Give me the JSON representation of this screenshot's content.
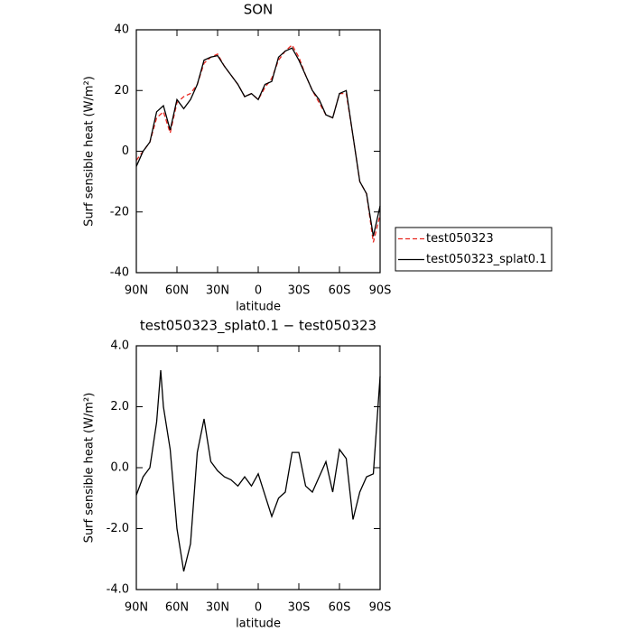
{
  "chart_data": [
    {
      "type": "line",
      "title": "SON",
      "x_label": "latitude",
      "y_label": "Surf sensible heat (W/m²)",
      "x": [
        90,
        85,
        80,
        75,
        70,
        65,
        60,
        55,
        50,
        45,
        40,
        35,
        30,
        25,
        20,
        15,
        10,
        5,
        0,
        -5,
        -10,
        -15,
        -20,
        -25,
        -30,
        -35,
        -40,
        -45,
        -50,
        -55,
        -60,
        -65,
        -70,
        -75,
        -80,
        -85,
        -90
      ],
      "xlim": [
        90,
        -90
      ],
      "xticks": [
        {
          "value": 90,
          "label": "90N"
        },
        {
          "value": 60,
          "label": "60N"
        },
        {
          "value": 30,
          "label": "30N"
        },
        0,
        {
          "value": -30,
          "label": "30S"
        },
        {
          "value": -60,
          "label": "60S"
        },
        {
          "value": -90,
          "label": "90S"
        }
      ],
      "ylim": [
        -40,
        40
      ],
      "yticks": [
        -40,
        -20,
        0,
        20,
        40
      ],
      "legend": "right",
      "series": [
        {
          "name": "test050323",
          "color": "#e8261f",
          "style": "dashed",
          "values": [
            -3,
            0,
            3,
            11,
            13,
            6,
            16,
            18,
            19,
            22,
            29,
            31,
            32,
            28,
            25,
            22,
            18,
            19,
            17,
            21,
            24,
            30,
            33,
            35,
            31,
            25,
            20,
            16,
            12,
            11,
            19,
            19,
            5,
            -10,
            -14,
            -30,
            -21
          ]
        },
        {
          "name": "test050323_splat0.1",
          "color": "#000000",
          "style": "solid",
          "values": [
            -5,
            0,
            3,
            13,
            15,
            7,
            17,
            14,
            17,
            22,
            30,
            31,
            31.5,
            28,
            25,
            22,
            18,
            19,
            17,
            22,
            23,
            31,
            33,
            34,
            30,
            25,
            20,
            17,
            12,
            11,
            19,
            20,
            5,
            -10,
            -14,
            -28,
            -18
          ]
        }
      ]
    },
    {
      "type": "line",
      "title": "test050323_splat0.1 − test050323",
      "x_label": "latitude",
      "y_label": "Surf sensible heat (W/m²)",
      "x": [
        90,
        85,
        80,
        75,
        72,
        70,
        65,
        60,
        55,
        50,
        45,
        40,
        35,
        30,
        25,
        20,
        15,
        10,
        5,
        0,
        -5,
        -10,
        -15,
        -20,
        -25,
        -30,
        -35,
        -40,
        -45,
        -50,
        -55,
        -60,
        -65,
        -70,
        -75,
        -80,
        -85,
        -90
      ],
      "xlim": [
        90,
        -90
      ],
      "xticks": [
        {
          "value": 90,
          "label": "90N"
        },
        {
          "value": 60,
          "label": "60N"
        },
        {
          "value": 30,
          "label": "30N"
        },
        0,
        {
          "value": -30,
          "label": "30S"
        },
        {
          "value": -60,
          "label": "60S"
        },
        {
          "value": -90,
          "label": "90S"
        }
      ],
      "ylim": [
        -4,
        4
      ],
      "yticks": [
        {
          "value": -4,
          "label": "-4.0"
        },
        {
          "value": -2,
          "label": "-2.0"
        },
        {
          "value": 0,
          "label": "0.0"
        },
        {
          "value": 2,
          "label": "2.0"
        },
        {
          "value": 4,
          "label": "4.0"
        }
      ],
      "series": [
        {
          "color": "#000000",
          "style": "solid",
          "values": [
            -0.9,
            -0.3,
            0.0,
            1.5,
            3.2,
            2.0,
            0.6,
            -2.0,
            -3.4,
            -2.5,
            0.5,
            1.6,
            0.2,
            -0.1,
            -0.3,
            -0.4,
            -0.6,
            -0.3,
            -0.6,
            -0.2,
            -0.9,
            -1.6,
            -1.0,
            -0.8,
            0.5,
            0.5,
            -0.6,
            -0.8,
            -0.3,
            0.2,
            -0.8,
            0.6,
            0.3,
            -1.7,
            -0.8,
            -0.3,
            -0.2,
            3.0
          ]
        }
      ]
    }
  ]
}
